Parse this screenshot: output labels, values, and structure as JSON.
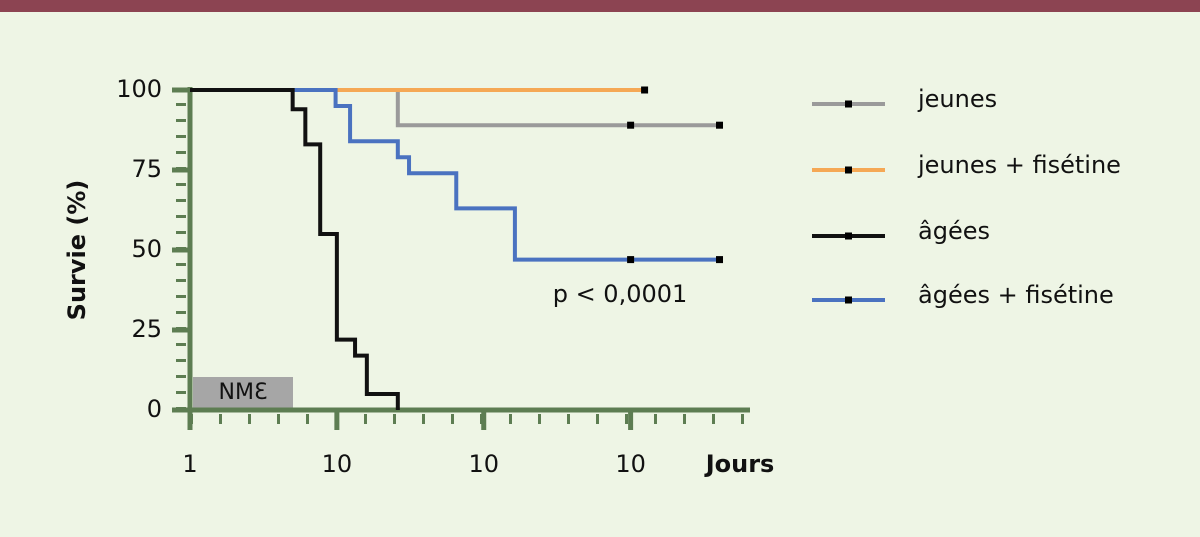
{
  "chart_data": {
    "type": "step",
    "xlabel": "Jours",
    "ylabel": "Survie (%)",
    "xscale": "log",
    "xlim": [
      1,
      6500
    ],
    "ylim": [
      0,
      100
    ],
    "xticks": [
      1,
      10,
      {
        "value": 100,
        "label": "10"
      },
      {
        "value": 1000,
        "label": "10"
      }
    ],
    "yticks": [
      0,
      25,
      50,
      75,
      100
    ],
    "annotations": [
      "p < 0,0001",
      "NMƐ"
    ],
    "legend": "right",
    "series": [
      {
        "name": "jeunes",
        "color": "#9a9a9a",
        "x": [
          1,
          26,
          4030
        ],
        "values": [
          100,
          89,
          89
        ],
        "censored_x": [
          1000,
          4030
        ],
        "censored_values": [
          89,
          89
        ]
      },
      {
        "name": "jeunes + fisétine",
        "color": "#f5a855",
        "x": [
          1,
          1245
        ],
        "values": [
          100,
          100
        ],
        "censored_x": [
          1245
        ],
        "censored_values": [
          100
        ]
      },
      {
        "name": "âgées",
        "color": "#111111",
        "x": [
          1,
          5,
          6.1,
          7.7,
          10,
          13.3,
          16,
          26
        ],
        "values": [
          100,
          94,
          83,
          55,
          22,
          17,
          5,
          0
        ],
        "censored_x": [],
        "censored_values": []
      },
      {
        "name": "âgées + fisétine",
        "color": "#4a72c0",
        "x": [
          1,
          9.8,
          12.3,
          26,
          31,
          65,
          163,
          4030
        ],
        "values": [
          100,
          95,
          84,
          79,
          74,
          63,
          47,
          47
        ],
        "censored_x": [
          1000,
          4030
        ],
        "censored_values": [
          47,
          47
        ]
      }
    ]
  }
}
